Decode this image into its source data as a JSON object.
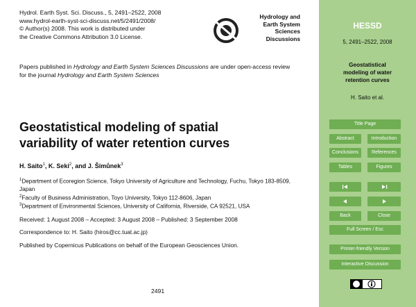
{
  "header": {
    "citation": [
      "Hydrol. Earth Syst. Sci. Discuss., 5, 2491–2522, 2008",
      "www.hydrol-earth-syst-sci-discuss.net/5/2491/2008/",
      "© Author(s) 2008. This work is distributed under",
      "the Creative Commons Attribution 3.0 License."
    ],
    "logo": [
      "Hydrology and",
      "Earth System",
      "Sciences",
      "Discussions"
    ]
  },
  "notice": [
    "Papers published in ",
    "Hydrology and Earth System Sciences Discussions",
    " are under open-access review for the journal ",
    "Hydrology and Earth System Sciences"
  ],
  "title": "Geostatistical modeling of spatial variability of water retention curves",
  "authors": [
    {
      "name": "H. Saito",
      "sup": "1"
    },
    {
      "name": ", K. Seki",
      "sup": "2"
    },
    {
      "name": ", and J. Šimůnek",
      "sup": "3"
    }
  ],
  "affiliations": [
    {
      "number": "1",
      "text": "Department of Ecoregion Science, Tokyo University of Agriculture and Technology, Fuchu, Tokyo 183-8509, Japan"
    },
    {
      "number": "2",
      "text": "Faculty of Business Administration, Toyo University, Tokyo 112-8606, Japan"
    },
    {
      "number": "3",
      "text": "Department of Environmental Sciences, University of California, Riverside, CA 92521, USA"
    }
  ],
  "received": "Received: 1 August 2008 – Accepted: 3 August 2008 – Published: 3 September 2008",
  "correspondence": "Correspondence to: H. Saito (hiros@cc.tuat.ac.jp)",
  "publisher": "Published by Copernicus Publications on behalf of the European Geosciences Union.",
  "page_number": "2491",
  "sidebar": {
    "journal": "HESSD",
    "citation": "5, 2491–2522, 2008",
    "short_title": "Geostatistical modeling of water retention curves",
    "authors": "H. Saito et al.",
    "buttons": [
      "Title Page",
      "Abstract",
      "Introduction",
      "Conclusions",
      "References",
      "Tables",
      "Figures",
      "Back",
      "Close",
      "Full Screen / Esc",
      "Printer-friendly Version",
      "Interactive Discussion"
    ]
  }
}
